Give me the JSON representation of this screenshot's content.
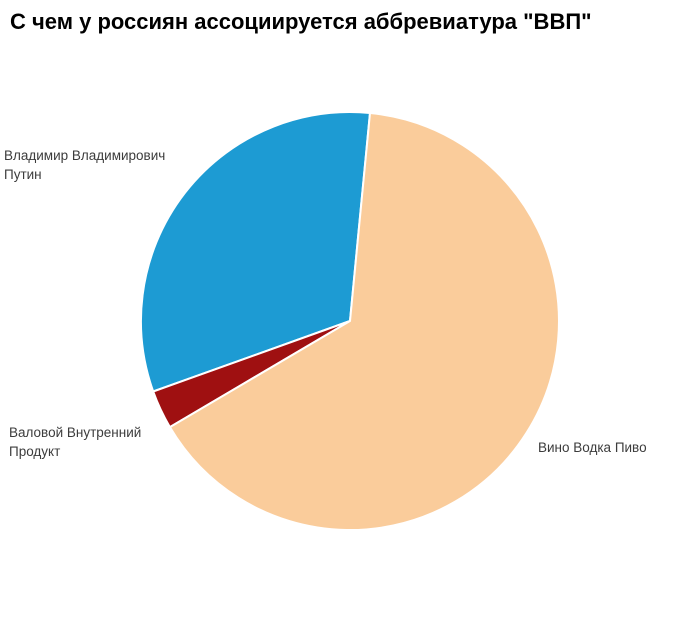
{
  "page": {
    "background_color": "#FFFFFF"
  },
  "chart_data": {
    "type": "pie",
    "title": "С чем у россиян ассоциируется аббревиатура \"ВВП\"",
    "title_color": "#000000",
    "label_color": "#3C3C3C",
    "separator_color": "#FFFFFF",
    "legend": "none",
    "start_angle_deg": 84.5,
    "direction": "counterclockwise",
    "slices": [
      {
        "label": "Владимир Владимирович Путин",
        "label_lines": [
          "Владимир Владимирович",
          "Путин"
        ],
        "value": 32,
        "color": "#1D9BD3"
      },
      {
        "label": "Валовой Внутренний Продукт",
        "label_lines": [
          "Валовой Внутренний",
          "Продукт"
        ],
        "value": 3,
        "color": "#9F1011"
      },
      {
        "label": "Вино Водка Пиво",
        "label_lines": [
          "Вино Водка Пиво"
        ],
        "value": 65,
        "color": "#FACC9B"
      }
    ]
  }
}
